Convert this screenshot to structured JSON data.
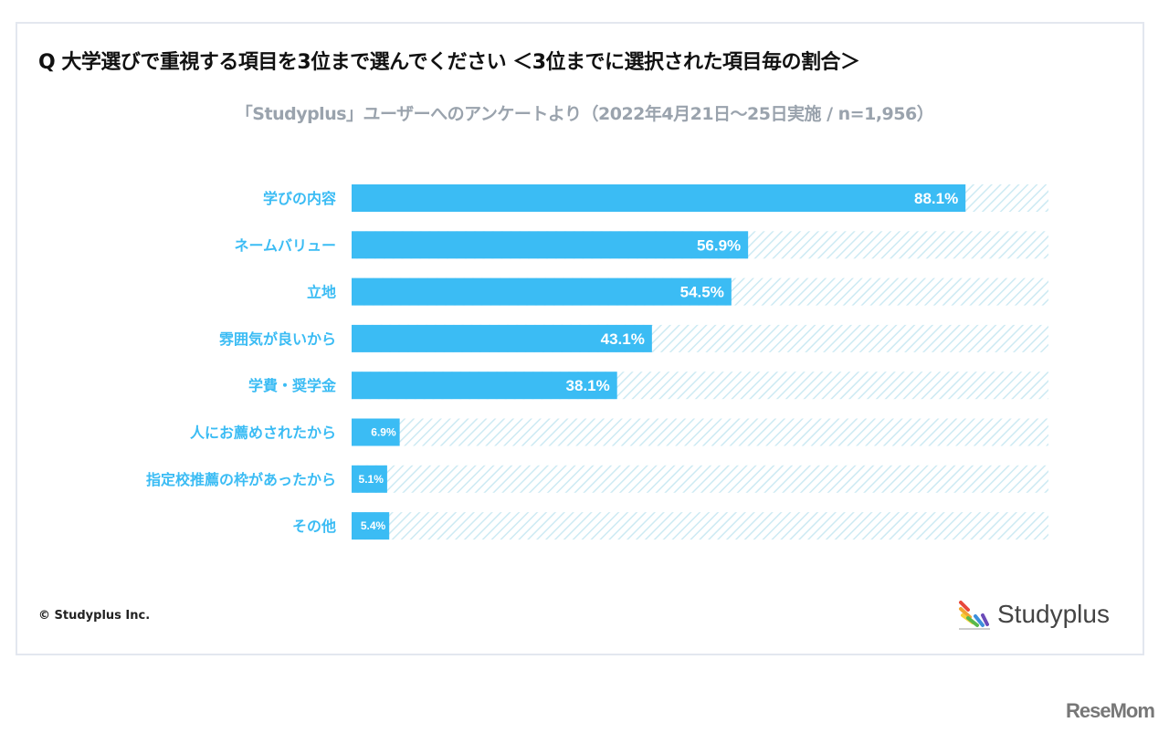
{
  "chart_data": {
    "type": "bar",
    "orientation": "horizontal",
    "title": "Q 大学選びで重視する項目を3位まで選んでください ＜3位までに選択された項目毎の割合＞",
    "subtitle": "「Studyplus」ユーザーへのアンケートより（2022年4月21日〜25日実施 / n=1,956）",
    "categories": [
      "学びの内容",
      "ネームバリュー",
      "立地",
      "雰囲気が良いから",
      "学費・奨学金",
      "人にお薦めされたから",
      "指定校推薦の枠があったから",
      "その他"
    ],
    "values": [
      88.1,
      56.9,
      54.5,
      43.1,
      38.1,
      6.9,
      5.1,
      5.4
    ],
    "labels": [
      "88.1%",
      "56.9%",
      "54.5%",
      "43.1%",
      "38.1%",
      "6.9%",
      "5.1%",
      "5.4%"
    ],
    "xlim": [
      0,
      100
    ],
    "unit": "%",
    "grid": false,
    "colors": {
      "bar": "#3bbcf4",
      "remainder_hatch": "#cdeaf3",
      "category_label": "#3bbcf4",
      "title": "#111111",
      "subtitle": "#9aa3ad"
    }
  },
  "footer": {
    "copyright": "© Studyplus Inc.",
    "logo_text": "Studyplus",
    "watermark": "ReseMom"
  }
}
